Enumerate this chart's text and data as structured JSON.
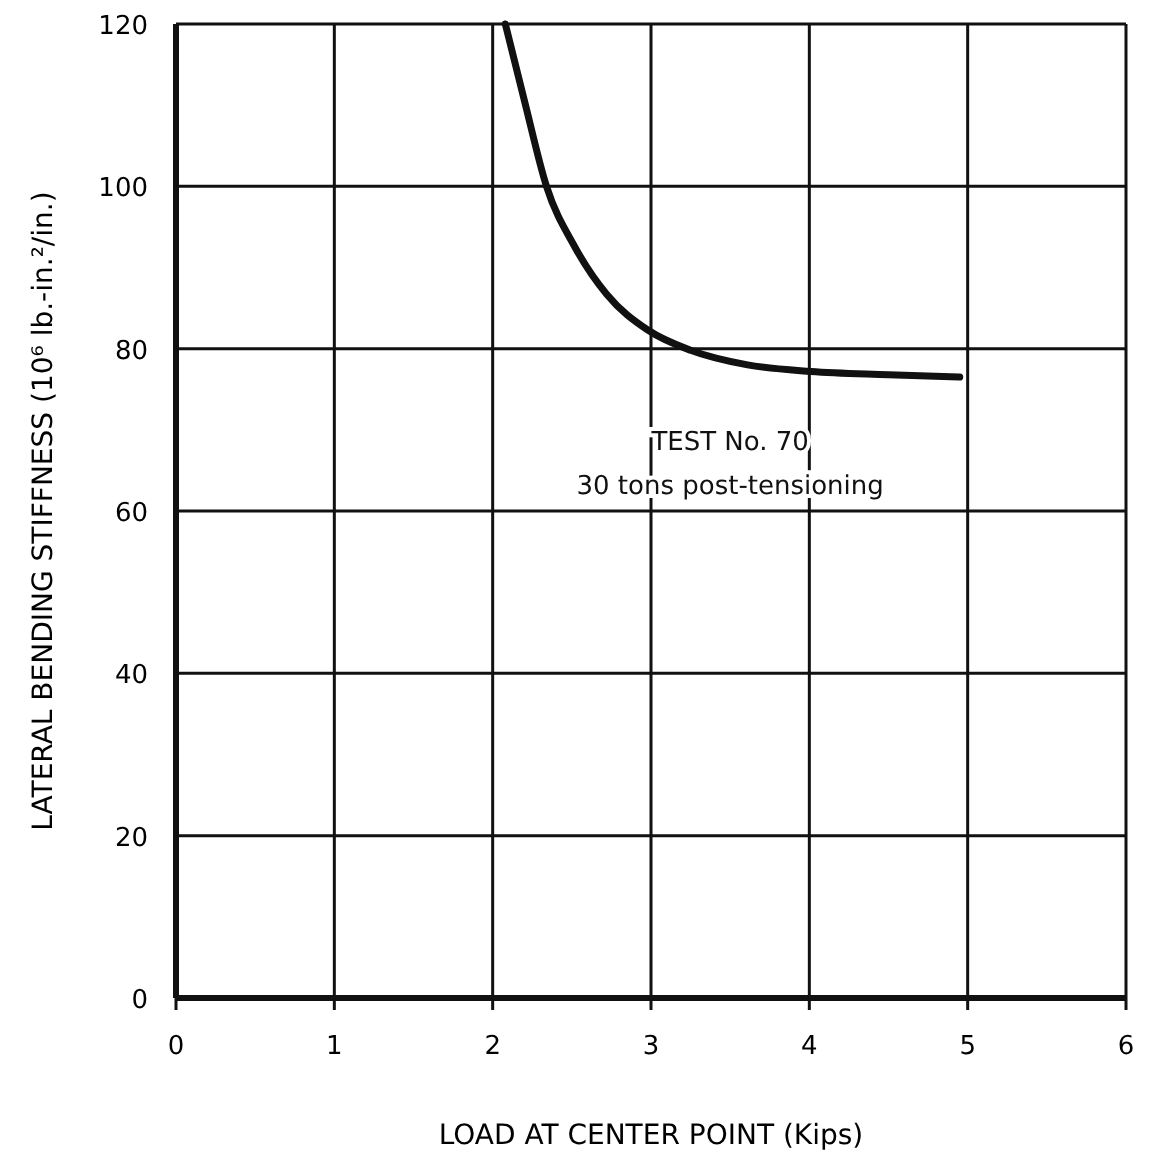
{
  "chart_data": {
    "type": "line",
    "xlabel": "LOAD AT CENTER POINT (Kips)",
    "ylabel": "LATERAL BENDING STIFFNESS (10⁶ lb.-in.²/in.)",
    "annotations": [
      "TEST No. 70",
      "30 tons post-tensioning"
    ],
    "x": [
      2.08,
      2.2,
      2.34,
      2.52,
      2.72,
      2.98,
      3.25,
      3.61,
      4.01,
      4.5,
      4.95
    ],
    "series": [
      {
        "color": "#111111",
        "values": [
          120,
          110.6,
          100,
          92.5,
          86.7,
          82.3,
          79.8,
          78,
          77.2,
          76.8,
          76.5
        ]
      }
    ],
    "xlim": [
      0,
      6
    ],
    "xticks": [
      0,
      1,
      2,
      3,
      4,
      5,
      6
    ],
    "ylim": [
      0,
      120
    ],
    "yticks": [
      0,
      20,
      40,
      60,
      80,
      100,
      120
    ],
    "grid": true,
    "marker": "none",
    "line_style": "solid"
  }
}
